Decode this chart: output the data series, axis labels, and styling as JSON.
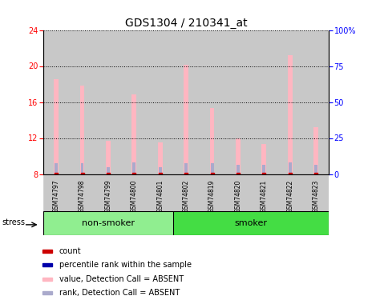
{
  "title": "GDS1304 / 210341_at",
  "samples": [
    "GSM74797",
    "GSM74798",
    "GSM74799",
    "GSM74800",
    "GSM74801",
    "GSM74802",
    "GSM74819",
    "GSM74820",
    "GSM74821",
    "GSM74822",
    "GSM74823"
  ],
  "pink_bar_values": [
    18.5,
    17.8,
    11.7,
    16.8,
    11.5,
    20.1,
    15.3,
    12.0,
    11.3,
    21.2,
    13.2
  ],
  "blue_bar_values": [
    9.2,
    9.2,
    8.8,
    9.3,
    8.8,
    9.2,
    9.2,
    9.0,
    9.0,
    9.3,
    9.0
  ],
  "red_dot_values": [
    8.0,
    8.0,
    8.0,
    8.0,
    8.0,
    8.0,
    8.0,
    8.0,
    8.0,
    8.0,
    8.0
  ],
  "ylim": [
    8,
    24
  ],
  "yticks_left": [
    8,
    12,
    16,
    20,
    24
  ],
  "yticks_right_vals": [
    0,
    25,
    50,
    75,
    100
  ],
  "yticks_right_labels": [
    "0",
    "25",
    "50",
    "75",
    "100%"
  ],
  "ylim_right": [
    0,
    100
  ],
  "nonsmoker_count": 5,
  "smoker_count": 6,
  "nonsmoker_color": "#90EE90",
  "smoker_color": "#44DD44",
  "pink_color": "#FFB6C1",
  "blue_color": "#AAAACC",
  "red_color": "#CC0000",
  "blue_legend_color": "#0000AA",
  "col_bg_color": "#C8C8C8",
  "legend_items": [
    {
      "label": "count",
      "color": "#CC0000"
    },
    {
      "label": "percentile rank within the sample",
      "color": "#0000AA"
    },
    {
      "label": "value, Detection Call = ABSENT",
      "color": "#FFB6C1"
    },
    {
      "label": "rank, Detection Call = ABSENT",
      "color": "#AAAACC"
    }
  ],
  "stress_label": "stress",
  "title_fontsize": 10,
  "tick_fontsize": 7,
  "label_fontsize": 8,
  "legend_fontsize": 7
}
